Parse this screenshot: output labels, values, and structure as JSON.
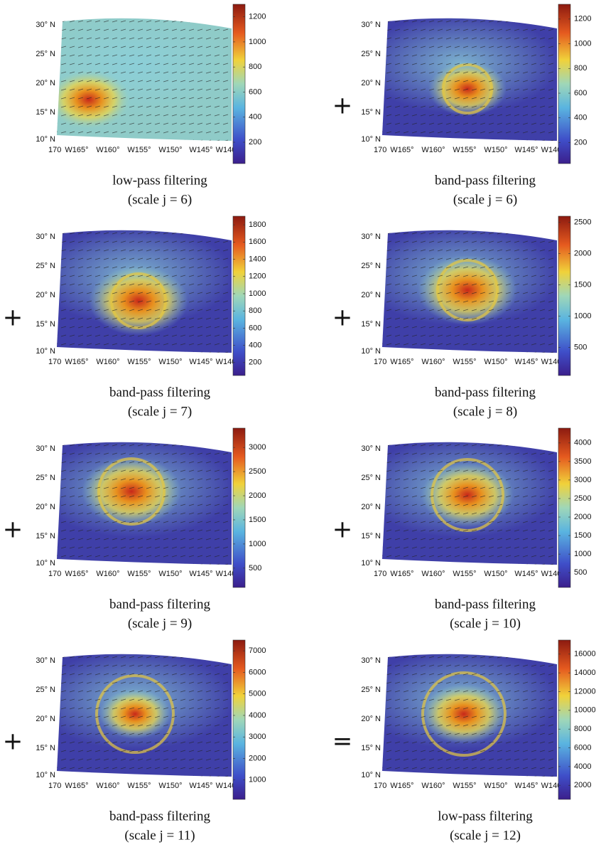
{
  "lat_labels": [
    "30° N",
    "25° N",
    "20° N",
    "15° N",
    "10° N"
  ],
  "lon_labels": [
    "170",
    "W165°",
    "W160°",
    "W155°",
    "W150°",
    "W145°",
    "W140"
  ],
  "panels": [
    {
      "caption": [
        "low-pass filtering",
        "(scale j = 6)"
      ],
      "colorbar": {
        "lim": [
          30,
          1300
        ],
        "ticks": [
          200,
          400,
          600,
          800,
          1000,
          1200
        ]
      }
    },
    {
      "operator": "+",
      "caption": [
        "band-pass filtering",
        "(scale j = 6)"
      ],
      "colorbar": {
        "lim": [
          30,
          1320
        ],
        "ticks": [
          200,
          400,
          600,
          800,
          1000,
          1200
        ]
      }
    },
    {
      "operator": "+",
      "caption": [
        "band-pass filtering",
        "(scale j = 7)"
      ],
      "colorbar": {
        "lim": [
          50,
          1900
        ],
        "ticks": [
          200,
          400,
          600,
          800,
          1000,
          1200,
          1400,
          1600,
          1800
        ]
      }
    },
    {
      "operator": "+",
      "caption": [
        "band-pass filtering",
        "(scale j = 8)"
      ],
      "colorbar": {
        "lim": [
          50,
          2600
        ],
        "ticks": [
          500,
          1000,
          1500,
          2000,
          2500
        ]
      }
    },
    {
      "operator": "+",
      "caption": [
        "band-pass filtering",
        "(scale j = 9)"
      ],
      "colorbar": {
        "lim": [
          100,
          3400
        ],
        "ticks": [
          500,
          1000,
          1500,
          2000,
          2500,
          3000
        ]
      }
    },
    {
      "operator": "+",
      "caption": [
        "band-pass filtering",
        "(scale j = 10)"
      ],
      "colorbar": {
        "lim": [
          100,
          4400
        ],
        "ticks": [
          500,
          1000,
          1500,
          2000,
          2500,
          3000,
          3500,
          4000
        ]
      }
    },
    {
      "operator": "+",
      "caption": [
        "band-pass filtering",
        "(scale j = 11)"
      ],
      "colorbar": {
        "lim": [
          100,
          7500
        ],
        "ticks": [
          1000,
          2000,
          3000,
          4000,
          5000,
          6000,
          7000
        ]
      }
    },
    {
      "operator": "=",
      "caption": [
        "low-pass filtering",
        "(scale j = 12)"
      ],
      "colorbar": {
        "lim": [
          500,
          17500
        ],
        "ticks": [
          2000,
          4000,
          6000,
          8000,
          10000,
          12000,
          14000,
          16000
        ]
      }
    }
  ]
}
